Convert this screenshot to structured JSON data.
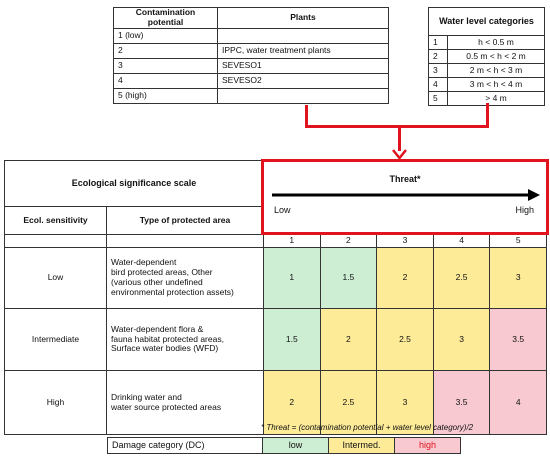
{
  "contamination_table": {
    "headers": [
      "Contamination potential",
      "Plants"
    ],
    "rows": [
      [
        "1 (low)",
        ""
      ],
      [
        "2",
        "IPPC, water treatment plants"
      ],
      [
        "3",
        "SEVESO1"
      ],
      [
        "4",
        "SEVESO2"
      ],
      [
        "5 (high)",
        ""
      ]
    ]
  },
  "water_table": {
    "title": "Water level categories",
    "rows": [
      [
        "1",
        "h < 0.5 m"
      ],
      [
        "2",
        "0.5 m < h < 2 m"
      ],
      [
        "3",
        "2 m < h < 3 m"
      ],
      [
        "4",
        "3 m < h < 4 m"
      ],
      [
        "5",
        "> 4 m"
      ]
    ]
  },
  "main_table": {
    "scale_title": "Ecological significance scale",
    "threat_title": "Threat*",
    "threat_low": "Low",
    "threat_high": "High",
    "col_sensitivity": "Ecol. sensitivity",
    "col_type": "Type of protected area",
    "threat_levels": [
      "1",
      "2",
      "3",
      "4",
      "5"
    ],
    "rows": [
      {
        "sensitivity": "Low",
        "type_lines": [
          "Water-dependent",
          "bird protected areas, Other",
          "(various other undefined",
          "environmental protection assets)"
        ],
        "values": [
          "1",
          "1.5",
          "2",
          "2.5",
          "3"
        ],
        "colors": [
          "g",
          "g",
          "y",
          "y",
          "y"
        ]
      },
      {
        "sensitivity": "Intermediate",
        "type_lines": [
          "Water-dependent flora &",
          "fauna habitat protected areas,",
          "Surface water bodies (WFD)"
        ],
        "values": [
          "1.5",
          "2",
          "2.5",
          "3",
          "3.5"
        ],
        "colors": [
          "g",
          "y",
          "y",
          "y",
          "p"
        ]
      },
      {
        "sensitivity": "High",
        "type_lines": [
          "Drinking water and",
          "water source protected areas"
        ],
        "values": [
          "2",
          "2.5",
          "3",
          "3.5",
          "4"
        ],
        "colors": [
          "y",
          "y",
          "y",
          "p",
          "p"
        ]
      }
    ]
  },
  "footnote": "* Threat = (contamination potential + water level category)/2",
  "legend": {
    "label": "Damage category (DC)",
    "low": "low",
    "intermed": "Intermed.",
    "high": "high"
  },
  "colors": {
    "low": "#cdeed3",
    "intermed": "#fdeb98",
    "high": "#f8c9d0",
    "highlight": "#e0131e"
  }
}
